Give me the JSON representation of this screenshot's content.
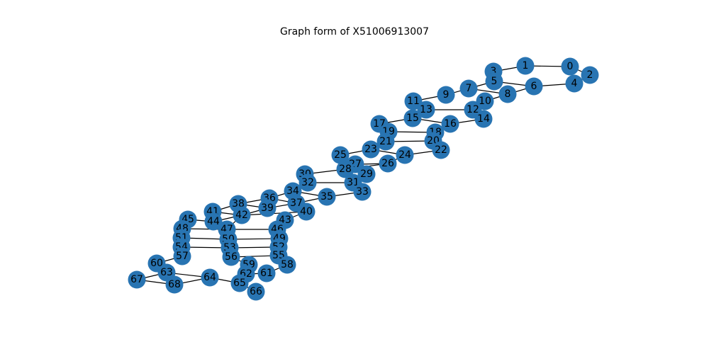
{
  "title": "Graph form of X51006913007",
  "colors": {
    "node": "#2874b2",
    "edge": "#000000",
    "label": "#000000"
  },
  "graph": {
    "nodes": [
      "0",
      "1",
      "2",
      "3",
      "4",
      "5",
      "6",
      "7",
      "8",
      "9",
      "10",
      "11",
      "12",
      "13",
      "14",
      "15",
      "16",
      "17",
      "18",
      "19",
      "20",
      "21",
      "22",
      "23",
      "24",
      "25",
      "26",
      "27",
      "28",
      "29",
      "30",
      "31",
      "32",
      "33",
      "34",
      "35",
      "36",
      "37",
      "38",
      "39",
      "40",
      "41",
      "42",
      "43",
      "44",
      "45",
      "46",
      "47",
      "48",
      "49",
      "50",
      "51",
      "52",
      "53",
      "54",
      "55",
      "56",
      "57",
      "58",
      "59",
      "60",
      "61",
      "62",
      "63",
      "64",
      "65",
      "66",
      "67",
      "68"
    ],
    "edges": [
      [
        0,
        1
      ],
      [
        0,
        2
      ],
      [
        1,
        3
      ],
      [
        2,
        4
      ],
      [
        3,
        5
      ],
      [
        4,
        6
      ],
      [
        5,
        6
      ],
      [
        5,
        7
      ],
      [
        6,
        8
      ],
      [
        7,
        8
      ],
      [
        7,
        9
      ],
      [
        8,
        10
      ],
      [
        9,
        11
      ],
      [
        10,
        12
      ],
      [
        11,
        13
      ],
      [
        12,
        13
      ],
      [
        12,
        14
      ],
      [
        13,
        15
      ],
      [
        14,
        16
      ],
      [
        15,
        16
      ],
      [
        15,
        17
      ],
      [
        16,
        18
      ],
      [
        17,
        19
      ],
      [
        18,
        19
      ],
      [
        18,
        20
      ],
      [
        19,
        21
      ],
      [
        20,
        21
      ],
      [
        20,
        22
      ],
      [
        21,
        23
      ],
      [
        22,
        24
      ],
      [
        23,
        24
      ],
      [
        23,
        25
      ],
      [
        24,
        26
      ],
      [
        25,
        27
      ],
      [
        26,
        27
      ],
      [
        26,
        28
      ],
      [
        27,
        29
      ],
      [
        28,
        29
      ],
      [
        28,
        30
      ],
      [
        29,
        31
      ],
      [
        30,
        32
      ],
      [
        31,
        32
      ],
      [
        31,
        33
      ],
      [
        32,
        34
      ],
      [
        33,
        35
      ],
      [
        34,
        35
      ],
      [
        34,
        36
      ],
      [
        35,
        37
      ],
      [
        36,
        37
      ],
      [
        36,
        38
      ],
      [
        37,
        39
      ],
      [
        37,
        40
      ],
      [
        38,
        39
      ],
      [
        38,
        41
      ],
      [
        39,
        42
      ],
      [
        40,
        42
      ],
      [
        40,
        43
      ],
      [
        41,
        42
      ],
      [
        41,
        44
      ],
      [
        42,
        44
      ],
      [
        42,
        47
      ],
      [
        43,
        46
      ],
      [
        44,
        45
      ],
      [
        45,
        48
      ],
      [
        46,
        47
      ],
      [
        46,
        49
      ],
      [
        47,
        50
      ],
      [
        48,
        51
      ],
      [
        49,
        50
      ],
      [
        49,
        52
      ],
      [
        50,
        53
      ],
      [
        51,
        54
      ],
      [
        52,
        53
      ],
      [
        52,
        55
      ],
      [
        53,
        56
      ],
      [
        54,
        57
      ],
      [
        55,
        56
      ],
      [
        55,
        58
      ],
      [
        56,
        59
      ],
      [
        57,
        60
      ],
      [
        58,
        61
      ],
      [
        59,
        62
      ],
      [
        60,
        63
      ],
      [
        61,
        62
      ],
      [
        62,
        65
      ],
      [
        63,
        64
      ],
      [
        63,
        67
      ],
      [
        63,
        68
      ],
      [
        64,
        65
      ],
      [
        64,
        68
      ],
      [
        65,
        66
      ],
      [
        67,
        68
      ],
      [
        53,
        54
      ],
      [
        50,
        51
      ],
      [
        47,
        48
      ]
    ]
  }
}
